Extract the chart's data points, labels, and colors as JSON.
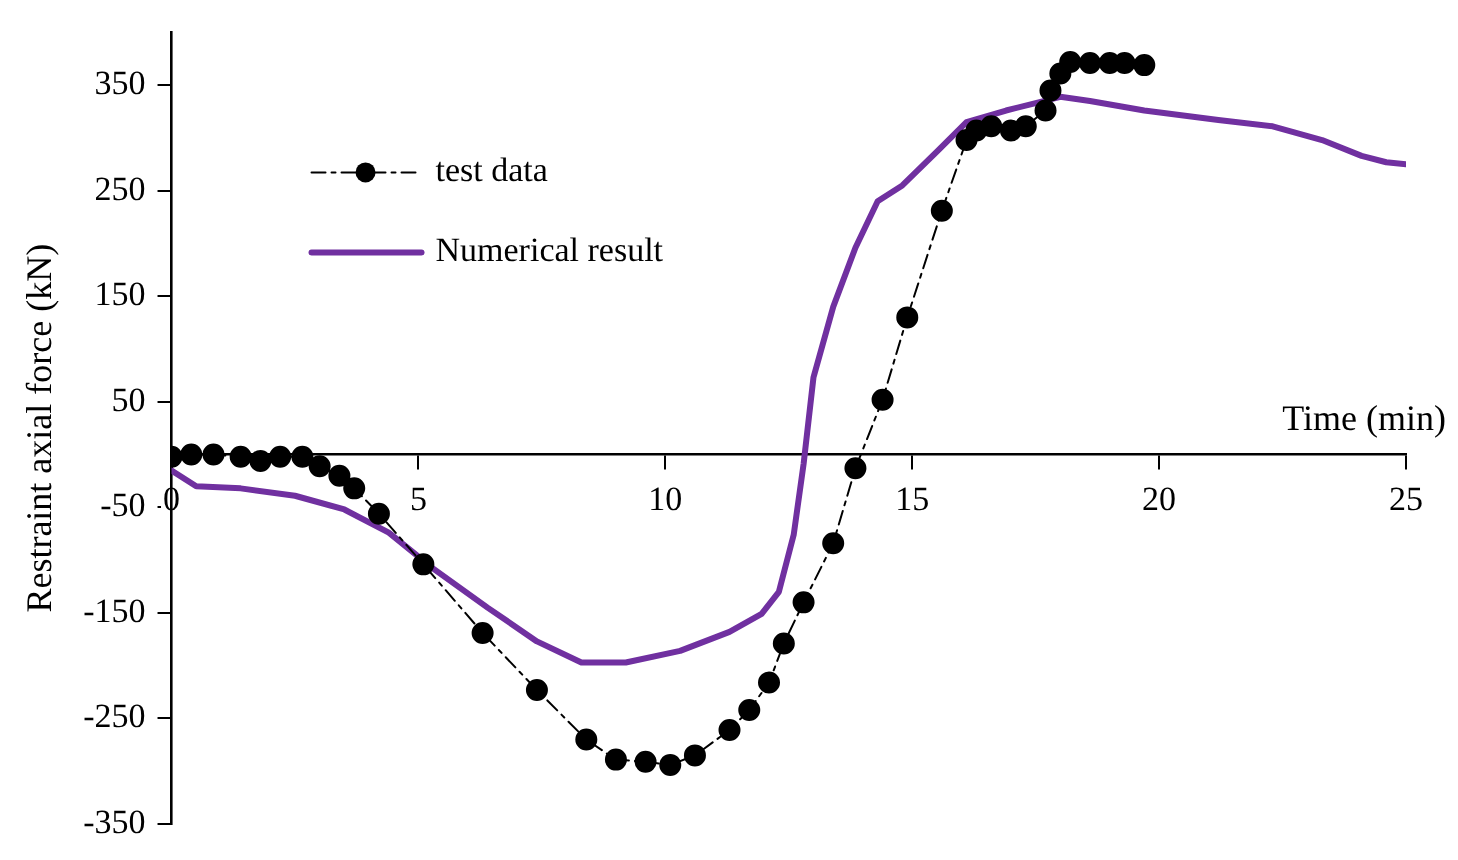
{
  "chart_data": {
    "type": "line",
    "xlabel": "Time (min)",
    "ylabel": "Restraint axial force (kN)",
    "xlim": [
      0,
      25
    ],
    "xticks": [
      0,
      5,
      10,
      15,
      20,
      25
    ],
    "ylim": [
      -350,
      400
    ],
    "yticks": [
      -350,
      -250,
      -150,
      -50,
      50,
      150,
      250,
      350
    ],
    "grid": false,
    "legend": "top left",
    "series": [
      {
        "name": "test data",
        "color": "#000000",
        "marker": "circle",
        "line_style": "dashed",
        "x": [
          0,
          0.4,
          0.85,
          1.4,
          1.8,
          2.2,
          2.65,
          3.0,
          3.4,
          3.7,
          4.2,
          5.1,
          6.3,
          7.4,
          8.4,
          9.0,
          9.6,
          10.1,
          10.6,
          11.3,
          11.7,
          12.1,
          12.4,
          12.8,
          13.4,
          13.85,
          14.4,
          14.9,
          15.6,
          16.1,
          16.3,
          16.6,
          17.0,
          17.3,
          17.7,
          17.8,
          18.0,
          18.2,
          18.6,
          19.0,
          19.3,
          19.7
        ],
        "values": [
          -2,
          0,
          0,
          -2,
          -6,
          -2,
          -2,
          -11,
          -20,
          -32,
          -56,
          -104,
          -169,
          -223,
          -270,
          -289,
          -291,
          -294,
          -285,
          -261,
          -242,
          -216,
          -179,
          -140,
          -84,
          -13,
          52,
          130,
          231,
          298,
          307,
          311,
          307,
          311,
          326,
          345,
          361,
          372,
          371,
          371,
          371,
          369
        ]
      },
      {
        "name": "Numerical result",
        "color": "#7030a0",
        "marker": "none",
        "line_style": "solid",
        "x": [
          0,
          0.5,
          1.4,
          2.5,
          3.5,
          4.4,
          5.3,
          6.4,
          7.4,
          8.3,
          9.2,
          10.3,
          11.3,
          11.95,
          12.3,
          12.6,
          12.8,
          13.0,
          13.4,
          13.85,
          14.3,
          14.8,
          15.5,
          16.1,
          16.9,
          17.5,
          18.0,
          18.6,
          19.7,
          21.2,
          22.3,
          23.3,
          24.1,
          24.6,
          25
        ],
        "values": [
          -15,
          -30,
          -32,
          -39,
          -52,
          -74,
          -108,
          -145,
          -177,
          -197,
          -197,
          -186,
          -168,
          -151,
          -130,
          -76,
          -9,
          73,
          140,
          196,
          240,
          255,
          287,
          315,
          326,
          333,
          339,
          335,
          326,
          317,
          311,
          298,
          283,
          277,
          275
        ]
      }
    ]
  }
}
